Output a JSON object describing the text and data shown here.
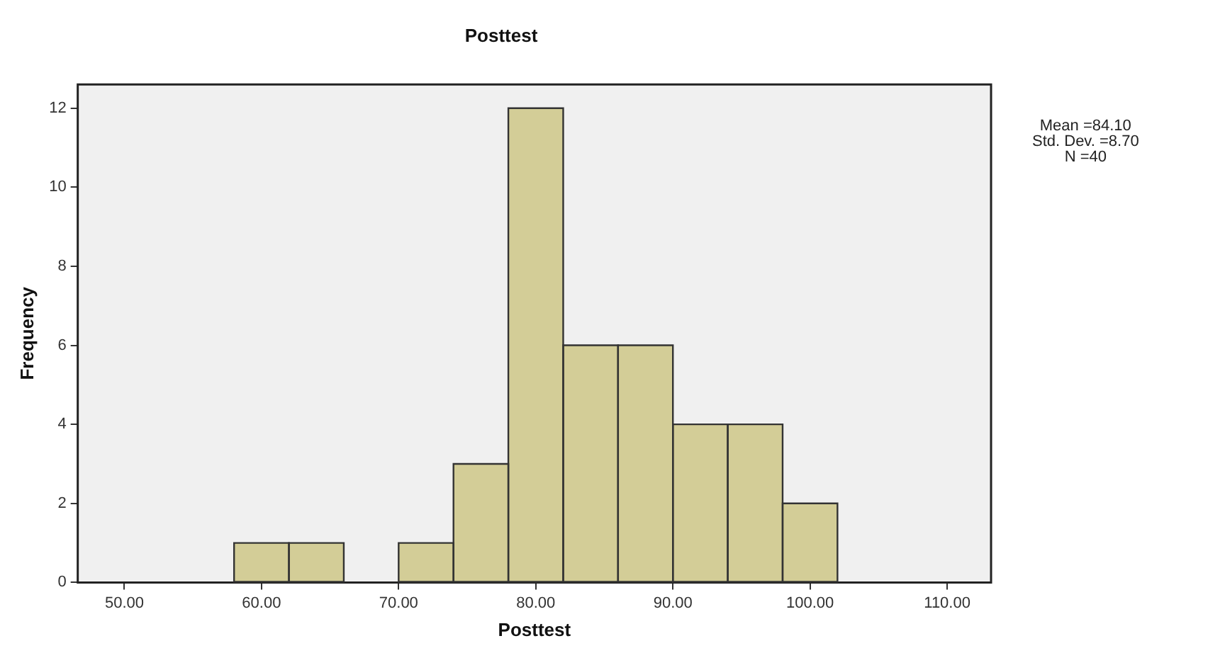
{
  "chart_data": {
    "type": "histogram",
    "title": "Posttest",
    "xlabel": "Posttest",
    "ylabel": "Frequency",
    "bins": [
      58,
      62,
      66,
      70,
      74,
      78,
      82,
      86,
      90,
      94,
      98,
      102
    ],
    "values": [
      1,
      1,
      0,
      1,
      3,
      12,
      6,
      6,
      4,
      4,
      2
    ],
    "color": "#d3cd97",
    "xlim": [
      46.6,
      113.2
    ],
    "xticks": [
      {
        "value": 50,
        "label": "50.00"
      },
      {
        "value": 60,
        "label": "60.00"
      },
      {
        "value": 70,
        "label": "70.00"
      },
      {
        "value": 80,
        "label": "80.00"
      },
      {
        "value": 90,
        "label": "90.00"
      },
      {
        "value": 100,
        "label": "100.00"
      },
      {
        "value": 110,
        "label": "110.00"
      }
    ],
    "ylim": [
      0,
      12.6
    ],
    "yticks": [
      0,
      2,
      4,
      6,
      8,
      10,
      12
    ],
    "grid": false,
    "legend": false,
    "annotations": [
      "Mean =84.10",
      "Std. Dev. =8.70",
      "N =40"
    ]
  }
}
